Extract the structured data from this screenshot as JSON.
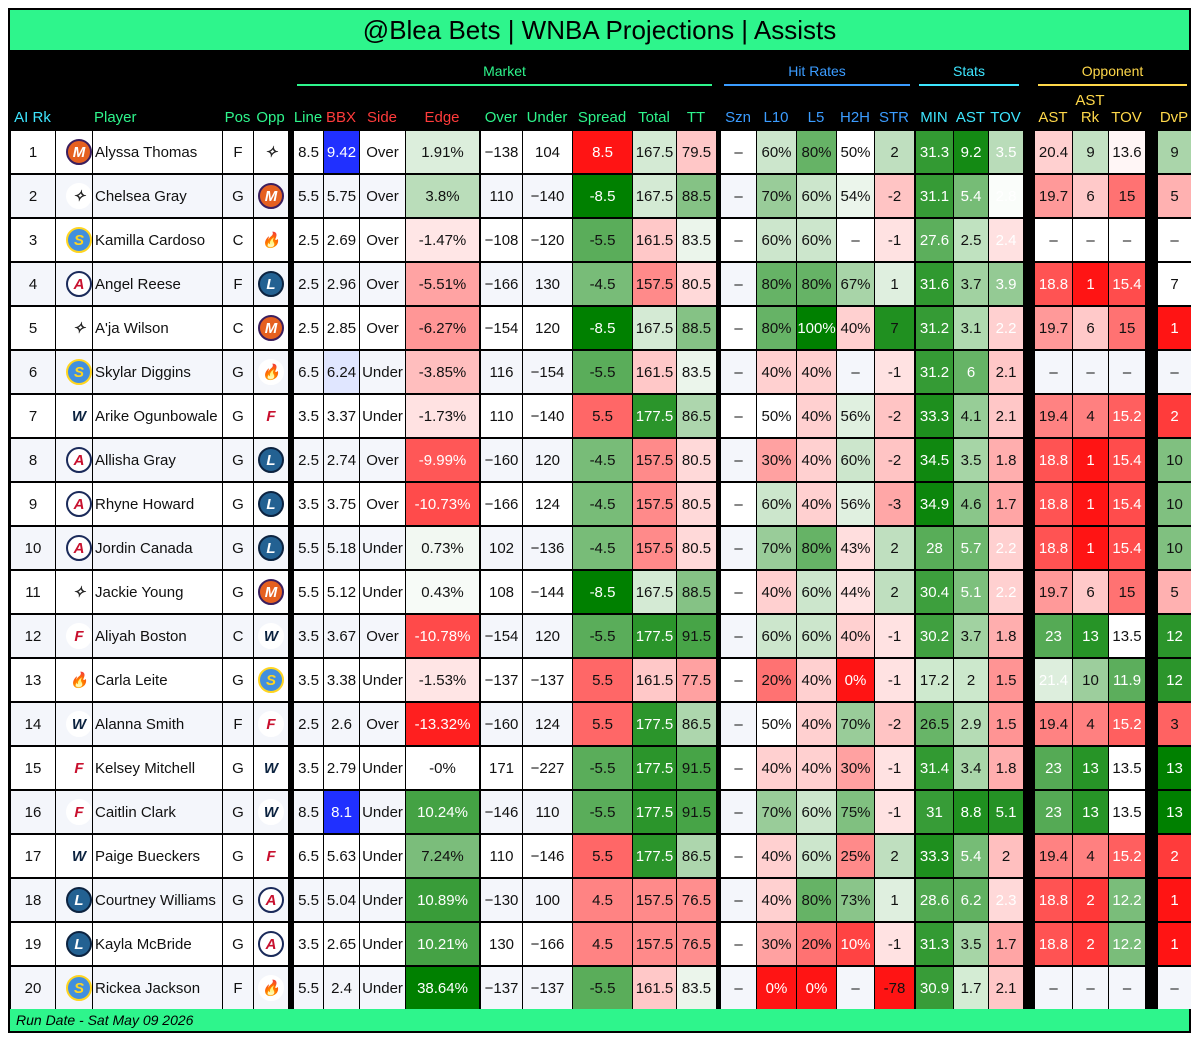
{
  "title": "@Blea Bets | WNBA Projections | Assists",
  "footer": "Run Date - Sat May 09 2026",
  "groups": {
    "market": "Market",
    "hit_rates": "Hit Rates",
    "stats": "Stats",
    "opponent": "Opponent"
  },
  "headers": {
    "rk": "AI Rk",
    "player": "Player",
    "pos": "Pos",
    "opp": "Opp",
    "line": "Line",
    "bbx": "BBX",
    "side": "Side",
    "edge": "Edge",
    "over": "Over",
    "under": "Under",
    "spread": "Spread",
    "total": "Total",
    "tt": "TT",
    "szn": "Szn",
    "l10": "L10",
    "l5": "L5",
    "h2h": "H2H",
    "str": "STR",
    "min": "MIN",
    "ast": "AST",
    "tov": "TOV",
    "oast": "AST",
    "astrk": "AST\nRk",
    "otov": "TOV",
    "dvp": "DvP"
  },
  "header_colors": {
    "teal": "#2ef58c",
    "cyan": "#3ee6ff",
    "blue": "#3b9cff",
    "yellow": "#ffd84a",
    "red": "#ff3b3b"
  },
  "team_icons": {
    "ATL": {
      "name": "atlanta-dream-logo-icon",
      "bg": "#ffffff",
      "fg": "#c8102e",
      "glyph": "A",
      "ring": "#1a2a5a"
    },
    "LV": {
      "name": "las-vegas-aces-logo-icon",
      "bg": "#ffffff",
      "fg": "#222222",
      "glyph": "✧",
      "ring": "#ffffff"
    },
    "PHX": {
      "name": "phoenix-mercury-logo-icon",
      "bg": "#e56020",
      "fg": "#ffffff",
      "glyph": "M",
      "ring": "#3b1f5e"
    },
    "CHI": {
      "name": "chicago-sky-logo-icon",
      "bg": "#418fde",
      "fg": "#ffd520",
      "glyph": "S",
      "ring": "#ffd520"
    },
    "POR": {
      "name": "portland-fire-logo-icon",
      "bg": "#ffffff",
      "fg": "#ff3fa0",
      "glyph": "🔥",
      "ring": "#ffffff"
    },
    "MIN": {
      "name": "minnesota-lynx-logo-icon",
      "bg": "#236192",
      "fg": "#ffffff",
      "glyph": "L",
      "ring": "#0c2340"
    },
    "DAL": {
      "name": "dallas-wings-logo-icon",
      "bg": "#ffffff",
      "fg": "#0c2340",
      "glyph": "W",
      "ring": "#ffffff"
    },
    "IND": {
      "name": "indiana-fever-logo-icon",
      "bg": "#ffffff",
      "fg": "#c8102e",
      "glyph": "F",
      "ring": "#ffffff"
    }
  },
  "rows": [
    {
      "rk": "1",
      "player": "Alyssa Thomas",
      "team": "PHX",
      "pos": "F",
      "opp": "LV",
      "line": "8.5",
      "bbx": "9.42",
      "side": "Over",
      "edge": "1.91%",
      "over": "−138",
      "under": "104",
      "spread": "8.5",
      "total": "167.5",
      "tt": "79.5",
      "szn": "–",
      "l10": "60%",
      "l5": "80%",
      "h2h": "50%",
      "str": "2",
      "min": "31.3",
      "ast": "9.2",
      "tov": "3.5",
      "oast": "20.4",
      "astrk": "9",
      "otov": "13.6",
      "dvp": "9"
    },
    {
      "rk": "2",
      "player": "Chelsea Gray",
      "team": "LV",
      "pos": "G",
      "opp": "PHX",
      "line": "5.5",
      "bbx": "5.75",
      "side": "Over",
      "edge": "3.8%",
      "over": "110",
      "under": "−140",
      "spread": "-8.5",
      "total": "167.5",
      "tt": "88.5",
      "szn": "–",
      "l10": "70%",
      "l5": "60%",
      "h2h": "54%",
      "str": "-2",
      "min": "31.1",
      "ast": "5.4",
      "tov": "2.8",
      "oast": "19.7",
      "astrk": "6",
      "otov": "15",
      "dvp": "5"
    },
    {
      "rk": "3",
      "player": "Kamilla Cardoso",
      "team": "CHI",
      "pos": "C",
      "opp": "POR",
      "line": "2.5",
      "bbx": "2.69",
      "side": "Over",
      "edge": "-1.47%",
      "over": "−108",
      "under": "−120",
      "spread": "-5.5",
      "total": "161.5",
      "tt": "83.5",
      "szn": "–",
      "l10": "60%",
      "l5": "60%",
      "h2h": "–",
      "str": "-1",
      "min": "27.6",
      "ast": "2.5",
      "tov": "2.4",
      "oast": "–",
      "astrk": "–",
      "otov": "–",
      "dvp": "–"
    },
    {
      "rk": "4",
      "player": "Angel Reese",
      "team": "ATL",
      "pos": "F",
      "opp": "MIN",
      "line": "2.5",
      "bbx": "2.96",
      "side": "Over",
      "edge": "-5.51%",
      "over": "−166",
      "under": "130",
      "spread": "-4.5",
      "total": "157.5",
      "tt": "80.5",
      "szn": "–",
      "l10": "80%",
      "l5": "80%",
      "h2h": "67%",
      "str": "1",
      "min": "31.6",
      "ast": "3.7",
      "tov": "3.9",
      "oast": "18.8",
      "astrk": "1",
      "otov": "15.4",
      "dvp": "7"
    },
    {
      "rk": "5",
      "player": "A'ja Wilson",
      "team": "LV",
      "pos": "C",
      "opp": "PHX",
      "line": "2.5",
      "bbx": "2.85",
      "side": "Over",
      "edge": "-6.27%",
      "over": "−154",
      "under": "120",
      "spread": "-8.5",
      "total": "167.5",
      "tt": "88.5",
      "szn": "–",
      "l10": "80%",
      "l5": "100%",
      "h2h": "40%",
      "str": "7",
      "min": "31.2",
      "ast": "3.1",
      "tov": "2.2",
      "oast": "19.7",
      "astrk": "6",
      "otov": "15",
      "dvp": "1"
    },
    {
      "rk": "6",
      "player": "Skylar Diggins",
      "team": "CHI",
      "pos": "G",
      "opp": "POR",
      "line": "6.5",
      "bbx": "6.24",
      "side": "Under",
      "edge": "-3.85%",
      "over": "116",
      "under": "−154",
      "spread": "-5.5",
      "total": "161.5",
      "tt": "83.5",
      "szn": "–",
      "l10": "40%",
      "l5": "40%",
      "h2h": "–",
      "str": "-1",
      "min": "31.2",
      "ast": "6",
      "tov": "2.1",
      "oast": "–",
      "astrk": "–",
      "otov": "–",
      "dvp": "–"
    },
    {
      "rk": "7",
      "player": "Arike Ogunbowale",
      "team": "DAL",
      "pos": "G",
      "opp": "IND",
      "line": "3.5",
      "bbx": "3.37",
      "side": "Under",
      "edge": "-1.73%",
      "over": "110",
      "under": "−140",
      "spread": "5.5",
      "total": "177.5",
      "tt": "86.5",
      "szn": "–",
      "l10": "50%",
      "l5": "40%",
      "h2h": "56%",
      "str": "-2",
      "min": "33.3",
      "ast": "4.1",
      "tov": "2.1",
      "oast": "19.4",
      "astrk": "4",
      "otov": "15.2",
      "dvp": "2"
    },
    {
      "rk": "8",
      "player": "Allisha Gray",
      "team": "ATL",
      "pos": "G",
      "opp": "MIN",
      "line": "2.5",
      "bbx": "2.74",
      "side": "Over",
      "edge": "-9.99%",
      "over": "−160",
      "under": "120",
      "spread": "-4.5",
      "total": "157.5",
      "tt": "80.5",
      "szn": "–",
      "l10": "30%",
      "l5": "40%",
      "h2h": "60%",
      "str": "-2",
      "min": "34.5",
      "ast": "3.5",
      "tov": "1.8",
      "oast": "18.8",
      "astrk": "1",
      "otov": "15.4",
      "dvp": "10"
    },
    {
      "rk": "9",
      "player": "Rhyne Howard",
      "team": "ATL",
      "pos": "G",
      "opp": "MIN",
      "line": "3.5",
      "bbx": "3.75",
      "side": "Over",
      "edge": "-10.73%",
      "over": "−166",
      "under": "124",
      "spread": "-4.5",
      "total": "157.5",
      "tt": "80.5",
      "szn": "–",
      "l10": "60%",
      "l5": "40%",
      "h2h": "56%",
      "str": "-3",
      "min": "34.9",
      "ast": "4.6",
      "tov": "1.7",
      "oast": "18.8",
      "astrk": "1",
      "otov": "15.4",
      "dvp": "10"
    },
    {
      "rk": "10",
      "player": "Jordin Canada",
      "team": "ATL",
      "pos": "G",
      "opp": "MIN",
      "line": "5.5",
      "bbx": "5.18",
      "side": "Under",
      "edge": "0.73%",
      "over": "102",
      "under": "−136",
      "spread": "-4.5",
      "total": "157.5",
      "tt": "80.5",
      "szn": "–",
      "l10": "70%",
      "l5": "80%",
      "h2h": "43%",
      "str": "2",
      "min": "28",
      "ast": "5.7",
      "tov": "2.2",
      "oast": "18.8",
      "astrk": "1",
      "otov": "15.4",
      "dvp": "10"
    },
    {
      "rk": "11",
      "player": "Jackie Young",
      "team": "LV",
      "pos": "G",
      "opp": "PHX",
      "line": "5.5",
      "bbx": "5.12",
      "side": "Under",
      "edge": "0.43%",
      "over": "108",
      "under": "−144",
      "spread": "-8.5",
      "total": "167.5",
      "tt": "88.5",
      "szn": "–",
      "l10": "40%",
      "l5": "60%",
      "h2h": "44%",
      "str": "2",
      "min": "30.4",
      "ast": "5.1",
      "tov": "2.2",
      "oast": "19.7",
      "astrk": "6",
      "otov": "15",
      "dvp": "5"
    },
    {
      "rk": "12",
      "player": "Aliyah Boston",
      "team": "IND",
      "pos": "C",
      "opp": "DAL",
      "line": "3.5",
      "bbx": "3.67",
      "side": "Over",
      "edge": "-10.78%",
      "over": "−154",
      "under": "120",
      "spread": "-5.5",
      "total": "177.5",
      "tt": "91.5",
      "szn": "–",
      "l10": "60%",
      "l5": "60%",
      "h2h": "40%",
      "str": "-1",
      "min": "30.2",
      "ast": "3.7",
      "tov": "1.8",
      "oast": "23",
      "astrk": "13",
      "otov": "13.5",
      "dvp": "12"
    },
    {
      "rk": "13",
      "player": "Carla Leite",
      "team": "POR",
      "pos": "G",
      "opp": "CHI",
      "line": "3.5",
      "bbx": "3.38",
      "side": "Under",
      "edge": "-1.53%",
      "over": "−137",
      "under": "−137",
      "spread": "5.5",
      "total": "161.5",
      "tt": "77.5",
      "szn": "–",
      "l10": "20%",
      "l5": "40%",
      "h2h": "0%",
      "str": "-1",
      "min": "17.2",
      "ast": "2",
      "tov": "1.5",
      "oast": "21.4",
      "astrk": "10",
      "otov": "11.9",
      "dvp": "12"
    },
    {
      "rk": "14",
      "player": "Alanna Smith",
      "team": "DAL",
      "pos": "F",
      "opp": "IND",
      "line": "2.5",
      "bbx": "2.6",
      "side": "Over",
      "edge": "-13.32%",
      "over": "−160",
      "under": "124",
      "spread": "5.5",
      "total": "177.5",
      "tt": "86.5",
      "szn": "–",
      "l10": "50%",
      "l5": "40%",
      "h2h": "70%",
      "str": "-2",
      "min": "26.5",
      "ast": "2.9",
      "tov": "1.5",
      "oast": "19.4",
      "astrk": "4",
      "otov": "15.2",
      "dvp": "3"
    },
    {
      "rk": "15",
      "player": "Kelsey Mitchell",
      "team": "IND",
      "pos": "G",
      "opp": "DAL",
      "line": "3.5",
      "bbx": "2.79",
      "side": "Under",
      "edge": "-0%",
      "over": "171",
      "under": "−227",
      "spread": "-5.5",
      "total": "177.5",
      "tt": "91.5",
      "szn": "–",
      "l10": "40%",
      "l5": "40%",
      "h2h": "30%",
      "str": "-1",
      "min": "31.4",
      "ast": "3.4",
      "tov": "1.8",
      "oast": "23",
      "astrk": "13",
      "otov": "13.5",
      "dvp": "13"
    },
    {
      "rk": "16",
      "player": "Caitlin Clark",
      "team": "IND",
      "pos": "G",
      "opp": "DAL",
      "line": "8.5",
      "bbx": "8.1",
      "side": "Under",
      "edge": "10.24%",
      "over": "−146",
      "under": "110",
      "spread": "-5.5",
      "total": "177.5",
      "tt": "91.5",
      "szn": "–",
      "l10": "70%",
      "l5": "60%",
      "h2h": "75%",
      "str": "-1",
      "min": "31",
      "ast": "8.8",
      "tov": "5.1",
      "oast": "23",
      "astrk": "13",
      "otov": "13.5",
      "dvp": "13"
    },
    {
      "rk": "17",
      "player": "Paige Bueckers",
      "team": "DAL",
      "pos": "G",
      "opp": "IND",
      "line": "6.5",
      "bbx": "5.63",
      "side": "Under",
      "edge": "7.24%",
      "over": "110",
      "under": "−146",
      "spread": "5.5",
      "total": "177.5",
      "tt": "86.5",
      "szn": "–",
      "l10": "40%",
      "l5": "60%",
      "h2h": "25%",
      "str": "2",
      "min": "33.3",
      "ast": "5.4",
      "tov": "2",
      "oast": "19.4",
      "astrk": "4",
      "otov": "15.2",
      "dvp": "2"
    },
    {
      "rk": "18",
      "player": "Courtney Williams",
      "team": "MIN",
      "pos": "G",
      "opp": "ATL",
      "line": "5.5",
      "bbx": "5.04",
      "side": "Under",
      "edge": "10.89%",
      "over": "−130",
      "under": "100",
      "spread": "4.5",
      "total": "157.5",
      "tt": "76.5",
      "szn": "–",
      "l10": "40%",
      "l5": "80%",
      "h2h": "73%",
      "str": "1",
      "min": "28.6",
      "ast": "6.2",
      "tov": "2.3",
      "oast": "18.8",
      "astrk": "2",
      "otov": "12.2",
      "dvp": "1"
    },
    {
      "rk": "19",
      "player": "Kayla McBride",
      "team": "MIN",
      "pos": "G",
      "opp": "ATL",
      "line": "3.5",
      "bbx": "2.65",
      "side": "Under",
      "edge": "10.21%",
      "over": "130",
      "under": "−166",
      "spread": "4.5",
      "total": "157.5",
      "tt": "76.5",
      "szn": "–",
      "l10": "30%",
      "l5": "20%",
      "h2h": "10%",
      "str": "-1",
      "min": "31.3",
      "ast": "3.5",
      "tov": "1.7",
      "oast": "18.8",
      "astrk": "2",
      "otov": "12.2",
      "dvp": "1"
    },
    {
      "rk": "20",
      "player": "Rickea Jackson",
      "team": "CHI",
      "pos": "F",
      "opp": "POR",
      "line": "5.5",
      "bbx": "2.4",
      "side": "Under",
      "edge": "38.64%",
      "over": "−137",
      "under": "−137",
      "spread": "-5.5",
      "total": "161.5",
      "tt": "83.5",
      "szn": "–",
      "l10": "0%",
      "l5": "0%",
      "h2h": "–",
      "str": "-78",
      "min": "30.9",
      "ast": "1.7",
      "tov": "2.1",
      "oast": "–",
      "astrk": "–",
      "otov": "–",
      "dvp": "–"
    }
  ]
}
